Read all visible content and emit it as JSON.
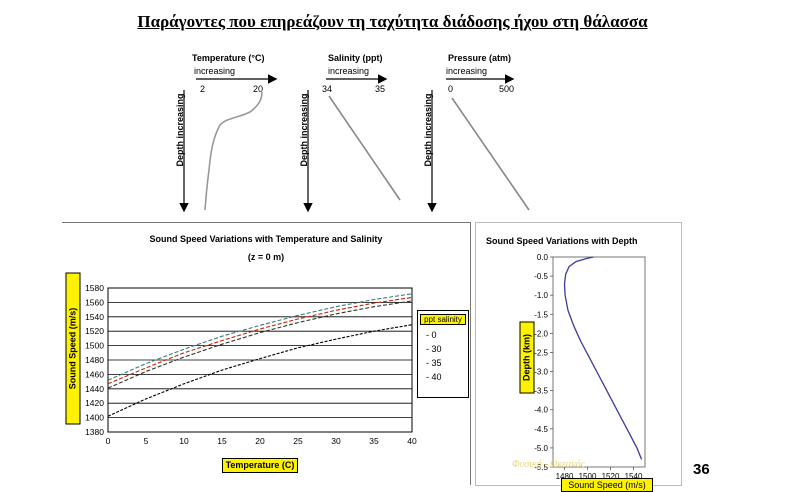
{
  "slide": {
    "title": "Παράγοντες που επηρεάζουν τη ταχύτητα διάδοσης ήχου στη θάλασσα",
    "page_number": "36",
    "watermark": "Φυσική - Ωκεανός"
  },
  "profiles": [
    {
      "label": "Temperature (°C)",
      "sublabel": "increasing",
      "tick_min": "2",
      "tick_max": "20",
      "depth_label": "Depth increasing"
    },
    {
      "label": "Salinity (ppt)",
      "sublabel": "increasing",
      "tick_min": "34",
      "tick_max": "35",
      "depth_label": "Depth increasing"
    },
    {
      "label": "Pressure (atm)",
      "sublabel": "increasing",
      "tick_min": "0",
      "tick_max": "500",
      "depth_label": "Depth increasing"
    }
  ],
  "chart_data": [
    {
      "type": "line",
      "title": "Sound Speed Variations with Temperature and Salinity",
      "subtitle": "(z = 0 m)",
      "xlabel": "Temperature (C)",
      "ylabel": "Sound Speed (m/s)",
      "xlim": [
        0,
        40
      ],
      "ylim": [
        1380,
        1580
      ],
      "x_ticks": [
        0,
        5,
        10,
        15,
        20,
        25,
        30,
        35,
        40
      ],
      "y_ticks": [
        1380,
        1400,
        1420,
        1440,
        1460,
        1480,
        1500,
        1520,
        1540,
        1560,
        1580
      ],
      "grid": true,
      "legend_title": "ppt salinity",
      "legend_position": "right",
      "x": [
        0,
        5,
        10,
        15,
        20,
        25,
        30,
        35,
        40
      ],
      "series": [
        {
          "name": "0",
          "color": "#000000",
          "values": [
            1402,
            1426,
            1447,
            1466,
            1482,
            1497,
            1509,
            1520,
            1529
          ]
        },
        {
          "name": "30",
          "color": "#333333",
          "values": [
            1441,
            1464,
            1484,
            1502,
            1518,
            1532,
            1544,
            1554,
            1562
          ]
        },
        {
          "name": "35",
          "color": "#cc2200",
          "values": [
            1447,
            1469,
            1490,
            1507,
            1523,
            1537,
            1549,
            1559,
            1567
          ]
        },
        {
          "name": "40",
          "color": "#3c7a7a",
          "values": [
            1452,
            1475,
            1495,
            1513,
            1528,
            1542,
            1554,
            1564,
            1572
          ]
        }
      ]
    },
    {
      "type": "line",
      "title": "Sound Speed Variations with Depth",
      "xlabel": "Sound Speed (m/s)",
      "ylabel": "Depth (km)",
      "xlim": [
        1470,
        1550
      ],
      "ylim": [
        -5.5,
        0.0
      ],
      "x_ticks": [
        1480,
        1500,
        1520,
        1540
      ],
      "y_ticks": [
        0.0,
        -0.5,
        -1.0,
        -1.5,
        -2.0,
        -2.5,
        -3.0,
        -3.5,
        -4.0,
        -4.5,
        -5.0,
        -5.5
      ],
      "y_tick_labels": [
        "0.0",
        "-0.5",
        "-1.0",
        "-1.5",
        "-2.0",
        "-2.5",
        "-3.0",
        "-3.5",
        "-4.0",
        "-4.5",
        "-5.0",
        "-5.5"
      ],
      "x": [
        1505,
        1498,
        1490,
        1484,
        1481,
        1480,
        1480.5,
        1483,
        1488,
        1494,
        1501,
        1508,
        1515,
        1522,
        1529,
        1536,
        1543,
        1547
      ],
      "y": [
        0.0,
        -0.05,
        -0.12,
        -0.25,
        -0.45,
        -0.7,
        -1.0,
        -1.4,
        -1.8,
        -2.2,
        -2.6,
        -3.0,
        -3.4,
        -3.8,
        -4.2,
        -4.6,
        -5.0,
        -5.3
      ],
      "color": "#3a3aa0"
    }
  ]
}
